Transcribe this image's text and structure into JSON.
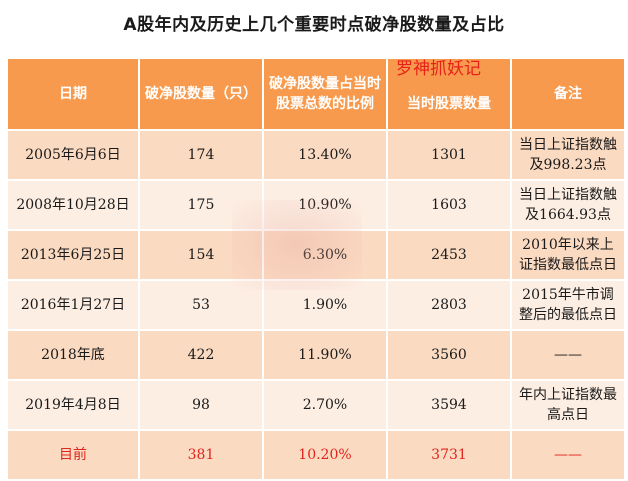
{
  "title": "A股年内及历史上几个重要时点破净股数量及占比",
  "watermark": "罗神抓妖记",
  "headers": [
    "日期",
    "破净股数量（只）",
    "破净股数量占当时股票总数的比例",
    "当时股票数量",
    "备注"
  ],
  "rows": [
    {
      "date": "2005年6月6日",
      "count": "174",
      "ratio": "13.40%",
      "total": "1301",
      "note": "当日上证指数触及998.23点"
    },
    {
      "date": "2008年10月28日",
      "count": "175",
      "ratio": "10.90%",
      "total": "1603",
      "note": "当日上证指数触及1664.93点"
    },
    {
      "date": "2013年6月25日",
      "count": "154",
      "ratio": "6.30%",
      "total": "2453",
      "note": "2010年以来上证指数最低点日"
    },
    {
      "date": "2016年1月27日",
      "count": "53",
      "ratio": "1.90%",
      "total": "2803",
      "note": "2015年牛市调整后的最低点日"
    },
    {
      "date": "2018年底",
      "count": "422",
      "ratio": "11.90%",
      "total": "3560",
      "note": "——"
    },
    {
      "date": "2019年4月8日",
      "count": "98",
      "ratio": "2.70%",
      "total": "3594",
      "note": "年内上证指数最高点日"
    },
    {
      "date": "目前",
      "count": "381",
      "ratio": "10.20%",
      "total": "3731",
      "note": "——"
    }
  ]
}
